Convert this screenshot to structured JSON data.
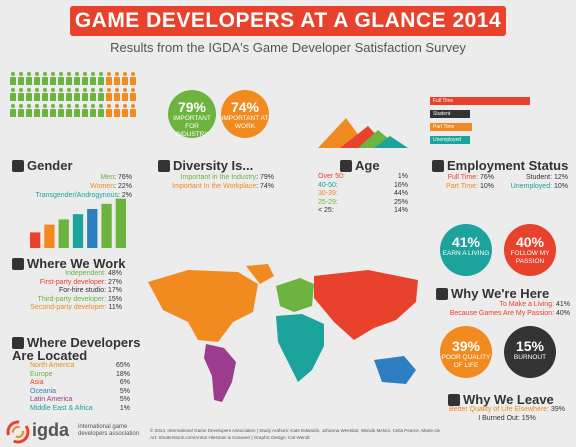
{
  "header": {
    "title": "GAME DEVELOPERS AT A GLANCE 2014",
    "subtitle": "Results from the IGDA's Game Developer Satisfaction Survey"
  },
  "gender": {
    "title": "Gender",
    "rows": [
      {
        "label": "Men",
        "value": "76%",
        "color": "#6cb33f"
      },
      {
        "label": "Women",
        "value": "22%",
        "color": "#f18a1f"
      },
      {
        "label": "Transgender/Androgynous",
        "value": "2%",
        "color": "#1ba39c"
      }
    ]
  },
  "diversity": {
    "title": "Diversity Is...",
    "rows": [
      {
        "label": "Important in the Industry",
        "value": "79%"
      },
      {
        "label": "Important In the Workplace",
        "value": "74%"
      }
    ],
    "circles": [
      {
        "pct": "79%",
        "label": "IMPORTANT FOR INDUSTRY",
        "color": "#6cb33f"
      },
      {
        "pct": "74%",
        "label": "IMPORTANT AT WORK",
        "color": "#f18a1f"
      }
    ]
  },
  "age": {
    "title": "Age",
    "rows": [
      {
        "label": "Over 50:",
        "value": "1%",
        "color": "#e8412c"
      },
      {
        "label": "40-50:",
        "value": "16%",
        "color": "#1ba39c"
      },
      {
        "label": "30-39:",
        "value": "44%",
        "color": "#f18a1f"
      },
      {
        "label": "25-29:",
        "value": "25%",
        "color": "#6cb33f"
      },
      {
        "label": "< 25:",
        "value": "14%",
        "color": "#333333"
      }
    ]
  },
  "employment": {
    "title": "Employment Status",
    "left": [
      {
        "label": "Full Time:",
        "value": "76%"
      },
      {
        "label": "Part Time:",
        "value": "10%"
      }
    ],
    "right": [
      {
        "label": "Student:",
        "value": "12%"
      },
      {
        "label": "Unemployed:",
        "value": "10%"
      }
    ],
    "bars": [
      {
        "label": "Full Time",
        "color": "#e8412c"
      },
      {
        "label": "Student",
        "color": "#333333"
      },
      {
        "label": "Part Time",
        "color": "#f18a1f"
      },
      {
        "label": "Unemployed",
        "color": "#1ba39c"
      }
    ]
  },
  "where_work": {
    "title": "Where We Work",
    "rows": [
      {
        "label": "Independent:",
        "value": "48%",
        "color": "#6cb33f"
      },
      {
        "label": "First-party developer:",
        "value": "27%",
        "color": "#e8412c"
      },
      {
        "label": "For-hire studio:",
        "value": "17%",
        "color": "#333333"
      },
      {
        "label": "Third-party developer:",
        "value": "15%",
        "color": "#6cb33f"
      },
      {
        "label": "Second-party developer:",
        "value": "11%",
        "color": "#f18a1f"
      }
    ]
  },
  "located": {
    "title_1": "Where Developers",
    "title_2": "Are Located",
    "rows": [
      {
        "label": "North America",
        "value": "65%",
        "color": "#f18a1f"
      },
      {
        "label": "Europe",
        "value": "18%",
        "color": "#6cb33f"
      },
      {
        "label": "Asia",
        "value": "6%",
        "color": "#e8412c"
      },
      {
        "label": "Oceania",
        "value": "5%",
        "color": "#2e7fc1"
      },
      {
        "label": "Latin America",
        "value": "5%",
        "color": "#9b3c8c"
      },
      {
        "label": "Middle East & Africa",
        "value": "1%",
        "color": "#1ba39c"
      }
    ]
  },
  "why_here": {
    "title": "Why We're Here",
    "rows": [
      {
        "label": "To Make a Living:",
        "value": "41%"
      },
      {
        "label": "Because Games Are My Passion:",
        "value": "40%"
      }
    ],
    "circles": [
      {
        "pct": "41%",
        "label": "EARN A LIVING",
        "color": "#1ba39c"
      },
      {
        "pct": "40%",
        "label": "FOLLOW MY PASSION",
        "color": "#e8412c"
      }
    ]
  },
  "why_leave": {
    "title": "Why We Leave",
    "rows": [
      {
        "label": "Better Quality of Life Elsewhere:",
        "value": "39%"
      },
      {
        "label": "I Burned Out:",
        "value": "15%"
      }
    ],
    "circles": [
      {
        "pct": "39%",
        "label": "POOR QUALITY OF LIFE",
        "color": "#f18a1f"
      },
      {
        "pct": "15%",
        "label": "BURNOUT",
        "color": "#333333"
      }
    ]
  },
  "footer": {
    "logo_text": "igda",
    "org_line1": "international game",
    "org_line2": "developers association",
    "credits_1": "© 2014, International Game Developers Association | Study Authors: Kate Edwards, Johanna Weststar, Wanda Meloni, Celia Pearce, Marie-Josée Legault",
    "credits_2": "Art: Shutterstock.com/Anton Hlesman & Ironaven | Graphic Design: Cat Wendt"
  },
  "chart_data": {
    "type": "bar",
    "categories": [
      "1",
      "2",
      "3",
      "4",
      "5",
      "6",
      "7"
    ],
    "values": [
      12,
      18,
      22,
      26,
      30,
      34,
      38
    ],
    "colors": [
      "#e8412c",
      "#f18a1f",
      "#6cb33f",
      "#1ba39c",
      "#2e7fc1",
      "#6cb33f",
      "#6cb33f"
    ]
  },
  "colors": {
    "accent_red": "#e8412c",
    "orange": "#f18a1f",
    "green": "#6cb33f",
    "teal": "#1ba39c"
  }
}
